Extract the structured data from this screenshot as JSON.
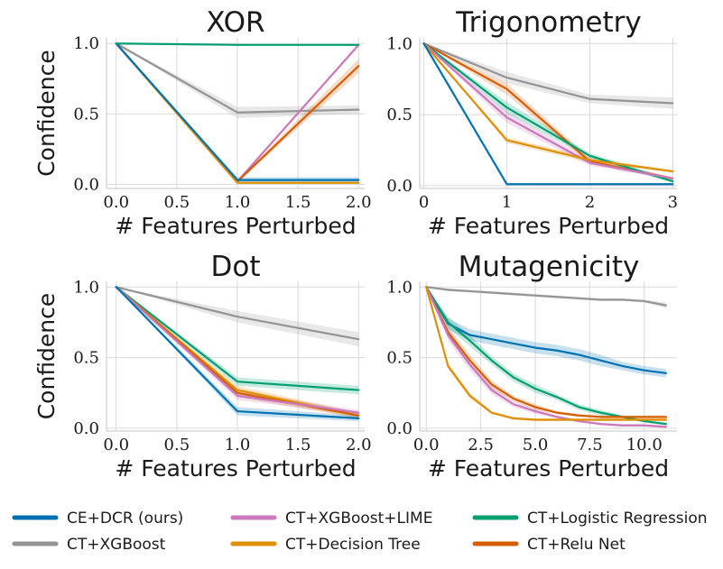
{
  "series_styles": [
    {
      "key": "ce_dcr",
      "name": "CE+DCR (ours)",
      "color": "#0072B2"
    },
    {
      "key": "xgb",
      "name": "CT+XGBoost",
      "color": "#949494"
    },
    {
      "key": "lime",
      "name": "CT+XGBoost+LIME",
      "color": "#CC78BC"
    },
    {
      "key": "dt",
      "name": "CT+Decision Tree",
      "color": "#DE8F05"
    },
    {
      "key": "lr",
      "name": "CT+Logistic Regression",
      "color": "#029E73"
    },
    {
      "key": "relu",
      "name": "CT+Relu Net",
      "color": "#D55E00"
    }
  ],
  "legend_order": [
    "ce_dcr",
    "xgb",
    "lime",
    "dt",
    "lr",
    "relu"
  ],
  "chart_data": [
    {
      "type": "line",
      "title": "XOR",
      "xlabel": "# Features Perturbed",
      "ylabel": "Confidence",
      "xlim": [
        -0.08,
        2.05
      ],
      "ylim": [
        -0.03,
        1.04
      ],
      "xticks": [
        0.0,
        0.5,
        1.0,
        1.5,
        2.0
      ],
      "xtick_labels": [
        "0.0",
        "0.5",
        "1.0",
        "1.5",
        "2.0"
      ],
      "yticks": [
        0.0,
        0.5,
        1.0
      ],
      "ytick_labels": [
        "0.0",
        "0.5",
        "1.0"
      ],
      "series": [
        {
          "key": "xgb",
          "x": [
            0,
            1,
            2
          ],
          "y": [
            1.0,
            0.51,
            0.53
          ],
          "band": [
            0.0,
            0.04,
            0.03
          ]
        },
        {
          "key": "lime",
          "x": [
            0,
            1,
            2
          ],
          "y": [
            1.0,
            0.02,
            0.99
          ],
          "band": [
            0.0,
            0.01,
            0.01
          ]
        },
        {
          "key": "relu",
          "x": [
            0,
            1,
            2
          ],
          "y": [
            1.0,
            0.02,
            0.84
          ],
          "band": [
            0.0,
            0.01,
            0.05
          ]
        },
        {
          "key": "dt",
          "x": [
            0,
            1,
            2
          ],
          "y": [
            1.0,
            0.01,
            0.01
          ],
          "band": [
            0.0,
            0.0,
            0.0
          ]
        },
        {
          "key": "ce_dcr",
          "x": [
            0,
            1,
            2
          ],
          "y": [
            1.0,
            0.03,
            0.03
          ],
          "band": [
            0.0,
            0.02,
            0.02
          ]
        },
        {
          "key": "lr",
          "x": [
            0,
            1,
            2
          ],
          "y": [
            1.0,
            0.99,
            0.99
          ],
          "band": [
            0.0,
            0.0,
            0.0
          ]
        }
      ]
    },
    {
      "type": "line",
      "title": "Trigonometry",
      "xlabel": "# Features Perturbed",
      "ylabel": "",
      "xlim": [
        -0.05,
        3.05
      ],
      "ylim": [
        -0.02,
        1.04
      ],
      "xticks": [
        0,
        1,
        2,
        3
      ],
      "xtick_labels": [
        "0",
        "1",
        "2",
        "3"
      ],
      "yticks": [
        0.0,
        0.5,
        1.0
      ],
      "ytick_labels": [
        "0.0",
        "0.5",
        "1.0"
      ],
      "series": [
        {
          "key": "xgb",
          "x": [
            0,
            1,
            2,
            3
          ],
          "y": [
            1.0,
            0.76,
            0.61,
            0.58
          ],
          "band": [
            0.0,
            0.04,
            0.03,
            0.04
          ]
        },
        {
          "key": "relu",
          "x": [
            0,
            1,
            2,
            3
          ],
          "y": [
            1.0,
            0.68,
            0.17,
            0.05
          ],
          "band": [
            0.0,
            0.04,
            0.02,
            0.01
          ]
        },
        {
          "key": "lr",
          "x": [
            0,
            1,
            2,
            3
          ],
          "y": [
            1.0,
            0.55,
            0.21,
            0.03
          ],
          "band": [
            0.0,
            0.04,
            0.02,
            0.01
          ]
        },
        {
          "key": "lime",
          "x": [
            0,
            1,
            2,
            3
          ],
          "y": [
            1.0,
            0.48,
            0.16,
            0.05
          ],
          "band": [
            0.0,
            0.04,
            0.02,
            0.01
          ]
        },
        {
          "key": "dt",
          "x": [
            0,
            1,
            2,
            3
          ],
          "y": [
            1.0,
            0.32,
            0.18,
            0.1
          ],
          "band": [
            0.0,
            0.02,
            0.02,
            0.01
          ]
        },
        {
          "key": "ce_dcr",
          "x": [
            0,
            1,
            2,
            3
          ],
          "y": [
            1.0,
            0.01,
            0.01,
            0.01
          ],
          "band": [
            0.0,
            0.0,
            0.0,
            0.0
          ]
        }
      ]
    },
    {
      "type": "line",
      "title": "Dot",
      "xlabel": "# Features Perturbed",
      "ylabel": "Confidence",
      "xlim": [
        -0.08,
        2.05
      ],
      "ylim": [
        -0.02,
        1.04
      ],
      "xticks": [
        0.0,
        0.5,
        1.0,
        1.5,
        2.0
      ],
      "xtick_labels": [
        "0.0",
        "0.5",
        "1.0",
        "1.5",
        "2.0"
      ],
      "yticks": [
        0.0,
        0.5,
        1.0
      ],
      "ytick_labels": [
        "0.0",
        "0.5",
        "1.0"
      ],
      "series": [
        {
          "key": "xgb",
          "x": [
            0,
            1,
            2
          ],
          "y": [
            1.0,
            0.79,
            0.63
          ],
          "band": [
            0.0,
            0.04,
            0.05
          ]
        },
        {
          "key": "lr",
          "x": [
            0,
            1,
            2
          ],
          "y": [
            1.0,
            0.33,
            0.27
          ],
          "band": [
            0.0,
            0.03,
            0.03
          ]
        },
        {
          "key": "dt",
          "x": [
            0,
            1,
            2
          ],
          "y": [
            1.0,
            0.27,
            0.09
          ],
          "band": [
            0.0,
            0.03,
            0.02
          ]
        },
        {
          "key": "relu",
          "x": [
            0,
            1,
            2
          ],
          "y": [
            1.0,
            0.25,
            0.09
          ],
          "band": [
            0.0,
            0.03,
            0.02
          ]
        },
        {
          "key": "lime",
          "x": [
            0,
            1,
            2
          ],
          "y": [
            1.0,
            0.23,
            0.11
          ],
          "band": [
            0.0,
            0.03,
            0.02
          ]
        },
        {
          "key": "ce_dcr",
          "x": [
            0,
            1,
            2
          ],
          "y": [
            1.0,
            0.12,
            0.07
          ],
          "band": [
            0.0,
            0.03,
            0.02
          ]
        }
      ]
    },
    {
      "type": "line",
      "title": "Mutagenicity",
      "xlabel": "# Features Perturbed",
      "ylabel": "",
      "xlim": [
        -0.3,
        11.5
      ],
      "ylim": [
        -0.02,
        1.04
      ],
      "xticks": [
        0.0,
        2.5,
        5.0,
        7.5,
        10.0
      ],
      "xtick_labels": [
        "0.0",
        "2.5",
        "5.0",
        "7.5",
        "10.0"
      ],
      "yticks": [
        0.0,
        0.5,
        1.0
      ],
      "ytick_labels": [
        "0.0",
        "0.5",
        "1.0"
      ],
      "series": [
        {
          "key": "xgb",
          "x": [
            0,
            1,
            2,
            3,
            4,
            5,
            6,
            7,
            8,
            9,
            10,
            11
          ],
          "y": [
            1.0,
            0.98,
            0.97,
            0.96,
            0.95,
            0.94,
            0.93,
            0.92,
            0.91,
            0.91,
            0.9,
            0.87
          ],
          "band": [
            0.0,
            0.01,
            0.01,
            0.01,
            0.01,
            0.01,
            0.01,
            0.01,
            0.01,
            0.01,
            0.01,
            0.02
          ]
        },
        {
          "key": "ce_dcr",
          "x": [
            0,
            1,
            2,
            3,
            4,
            5,
            6,
            7,
            8,
            9,
            10,
            11
          ],
          "y": [
            1.0,
            0.74,
            0.66,
            0.63,
            0.6,
            0.57,
            0.55,
            0.52,
            0.48,
            0.44,
            0.41,
            0.39
          ],
          "band": [
            0.0,
            0.04,
            0.04,
            0.04,
            0.04,
            0.04,
            0.04,
            0.04,
            0.04,
            0.03,
            0.03,
            0.03
          ]
        },
        {
          "key": "lr",
          "x": [
            0,
            1,
            2,
            3,
            4,
            5,
            6,
            7,
            8,
            9,
            10,
            11
          ],
          "y": [
            1.0,
            0.75,
            0.62,
            0.48,
            0.36,
            0.28,
            0.22,
            0.15,
            0.11,
            0.08,
            0.05,
            0.03
          ],
          "band": [
            0.0,
            0.04,
            0.04,
            0.03,
            0.03,
            0.03,
            0.02,
            0.02,
            0.02,
            0.01,
            0.01,
            0.01
          ]
        },
        {
          "key": "relu",
          "x": [
            0,
            1,
            2,
            3,
            4,
            5,
            6,
            7,
            8,
            9,
            10,
            11
          ],
          "y": [
            1.0,
            0.68,
            0.48,
            0.31,
            0.21,
            0.15,
            0.11,
            0.09,
            0.08,
            0.08,
            0.08,
            0.08
          ],
          "band": [
            0.0,
            0.04,
            0.04,
            0.03,
            0.02,
            0.02,
            0.01,
            0.01,
            0.01,
            0.01,
            0.01,
            0.01
          ]
        },
        {
          "key": "lime",
          "x": [
            0,
            1,
            2,
            3,
            4,
            5,
            6,
            7,
            8,
            9,
            10,
            11
          ],
          "y": [
            1.0,
            0.66,
            0.45,
            0.27,
            0.17,
            0.12,
            0.08,
            0.05,
            0.03,
            0.02,
            0.02,
            0.01
          ],
          "band": [
            0.0,
            0.04,
            0.04,
            0.03,
            0.02,
            0.02,
            0.01,
            0.01,
            0.01,
            0.01,
            0.01,
            0.01
          ]
        },
        {
          "key": "dt",
          "x": [
            0,
            1,
            2,
            3,
            4,
            5,
            6,
            7,
            8,
            9,
            10,
            11
          ],
          "y": [
            1.0,
            0.44,
            0.23,
            0.11,
            0.07,
            0.06,
            0.06,
            0.06,
            0.06,
            0.06,
            0.06,
            0.06
          ],
          "band": [
            0.0,
            0.02,
            0.02,
            0.01,
            0.01,
            0.01,
            0.01,
            0.01,
            0.01,
            0.01,
            0.01,
            0.01
          ]
        }
      ]
    }
  ]
}
